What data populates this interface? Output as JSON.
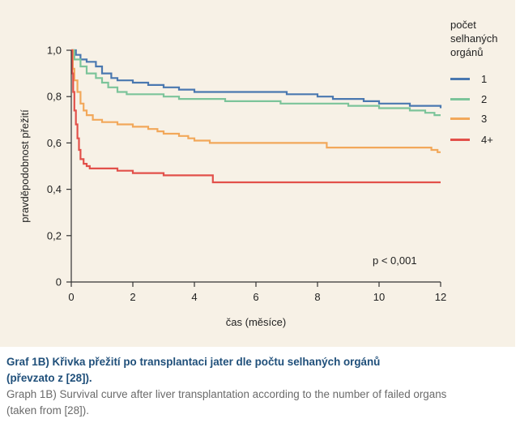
{
  "chart_data": {
    "type": "line",
    "title": "",
    "xlabel": "čas (měsíce)",
    "ylabel": "pravděpodobnost přežití",
    "xlim": [
      0,
      12
    ],
    "ylim": [
      0,
      1
    ],
    "x_ticks": [
      "0",
      "2",
      "4",
      "6",
      "8",
      "10",
      "12"
    ],
    "y_ticks": [
      "0",
      "0,2",
      "0,4",
      "0,6",
      "0,8",
      "1,0"
    ],
    "legend_title_lines": [
      "počet",
      "selhaných",
      "orgánů"
    ],
    "legend_position": "right",
    "annotation": "p < 0,001",
    "grid": false,
    "series": [
      {
        "name": "1",
        "color": "#4a78b0",
        "points": [
          [
            0,
            1.0
          ],
          [
            0.15,
            0.98
          ],
          [
            0.3,
            0.96
          ],
          [
            0.5,
            0.95
          ],
          [
            0.8,
            0.93
          ],
          [
            1.0,
            0.9
          ],
          [
            1.3,
            0.88
          ],
          [
            1.5,
            0.87
          ],
          [
            2.0,
            0.86
          ],
          [
            2.5,
            0.85
          ],
          [
            3.0,
            0.84
          ],
          [
            3.5,
            0.83
          ],
          [
            4.0,
            0.82
          ],
          [
            5.0,
            0.82
          ],
          [
            6.0,
            0.82
          ],
          [
            7.0,
            0.81
          ],
          [
            8.0,
            0.8
          ],
          [
            8.5,
            0.79
          ],
          [
            9.5,
            0.78
          ],
          [
            10.0,
            0.77
          ],
          [
            11.0,
            0.76
          ],
          [
            12.0,
            0.75
          ]
        ]
      },
      {
        "name": "2",
        "color": "#7cc49a",
        "points": [
          [
            0,
            1.0
          ],
          [
            0.1,
            0.96
          ],
          [
            0.3,
            0.93
          ],
          [
            0.5,
            0.9
          ],
          [
            0.8,
            0.88
          ],
          [
            1.0,
            0.86
          ],
          [
            1.2,
            0.84
          ],
          [
            1.5,
            0.82
          ],
          [
            1.8,
            0.81
          ],
          [
            2.0,
            0.81
          ],
          [
            3.0,
            0.8
          ],
          [
            3.5,
            0.79
          ],
          [
            4.0,
            0.79
          ],
          [
            5.0,
            0.78
          ],
          [
            6.0,
            0.78
          ],
          [
            6.8,
            0.77
          ],
          [
            8.0,
            0.77
          ],
          [
            9.0,
            0.76
          ],
          [
            10.0,
            0.75
          ],
          [
            11.0,
            0.74
          ],
          [
            11.5,
            0.73
          ],
          [
            11.8,
            0.72
          ],
          [
            12.0,
            0.72
          ]
        ]
      },
      {
        "name": "3",
        "color": "#f2a85a",
        "points": [
          [
            0,
            1.0
          ],
          [
            0.05,
            0.92
          ],
          [
            0.1,
            0.87
          ],
          [
            0.2,
            0.82
          ],
          [
            0.3,
            0.77
          ],
          [
            0.4,
            0.74
          ],
          [
            0.5,
            0.72
          ],
          [
            0.7,
            0.7
          ],
          [
            1.0,
            0.69
          ],
          [
            1.5,
            0.68
          ],
          [
            2.0,
            0.67
          ],
          [
            2.5,
            0.66
          ],
          [
            2.8,
            0.65
          ],
          [
            3.0,
            0.64
          ],
          [
            3.5,
            0.63
          ],
          [
            3.8,
            0.62
          ],
          [
            4.0,
            0.61
          ],
          [
            4.5,
            0.6
          ],
          [
            6.0,
            0.6
          ],
          [
            8.0,
            0.6
          ],
          [
            8.3,
            0.58
          ],
          [
            9.0,
            0.58
          ],
          [
            10.0,
            0.58
          ],
          [
            11.0,
            0.58
          ],
          [
            11.7,
            0.57
          ],
          [
            11.9,
            0.56
          ],
          [
            12.0,
            0.56
          ]
        ]
      },
      {
        "name": "4+",
        "color": "#e2504a",
        "points": [
          [
            0,
            1.0
          ],
          [
            0.03,
            0.9
          ],
          [
            0.06,
            0.82
          ],
          [
            0.1,
            0.74
          ],
          [
            0.15,
            0.68
          ],
          [
            0.2,
            0.62
          ],
          [
            0.25,
            0.57
          ],
          [
            0.3,
            0.53
          ],
          [
            0.4,
            0.51
          ],
          [
            0.5,
            0.5
          ],
          [
            0.6,
            0.49
          ],
          [
            1.0,
            0.49
          ],
          [
            1.5,
            0.48
          ],
          [
            2.0,
            0.47
          ],
          [
            2.5,
            0.47
          ],
          [
            3.0,
            0.46
          ],
          [
            4.0,
            0.46
          ],
          [
            4.6,
            0.43
          ],
          [
            6.0,
            0.43
          ],
          [
            8.0,
            0.43
          ],
          [
            10.0,
            0.43
          ],
          [
            12.0,
            0.43
          ]
        ]
      }
    ]
  },
  "caption": {
    "czech_line1": "Graf 1B) Křivka přežití po transplantaci jater dle počtu selhaných orgánů",
    "czech_line2": "(převzato z [28]).",
    "english_line1": "Graph 1B) Survival curve after liver transplantation according to the number of failed organs",
    "english_line2": "(taken from [28])."
  }
}
